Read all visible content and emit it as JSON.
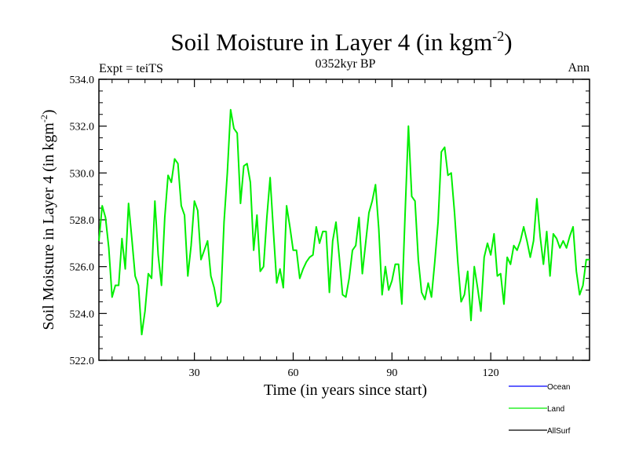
{
  "chart_data": {
    "type": "line",
    "title_main": "Soil Moisture in Layer 4 (in kgm",
    "title_sup": "-2",
    "title_close": ")",
    "subtitle": "0352kyr BP",
    "left_label": "Expt = teiTS",
    "right_label": "Ann",
    "xlabel": "Time (in years since start)",
    "ylabel_main": "Soil Moisture in Layer 4 (in kgm",
    "ylabel_sup": "-2",
    "ylabel_close": ")",
    "xlim": [
      1,
      150
    ],
    "ylim": [
      522,
      534
    ],
    "xticks": [
      30,
      60,
      90,
      120
    ],
    "xtick_labels": [
      "30",
      "60",
      "90",
      "120"
    ],
    "yticks": [
      522,
      524,
      526,
      528,
      530,
      532,
      534
    ],
    "ytick_labels": [
      "522.0",
      "524.0",
      "526.0",
      "528.0",
      "530.0",
      "532.0",
      "534.0"
    ],
    "x_minor_step": 5,
    "y_minor_step": 0.5,
    "legend": [
      {
        "name": "Ocean",
        "color": "#0000ff"
      },
      {
        "name": "Land",
        "color": "#00ee00"
      },
      {
        "name": "AllSurf",
        "color": "#000000"
      }
    ],
    "series": [
      {
        "name": "Land",
        "color": "#00ee00",
        "x_start": 1,
        "x_step": 1,
        "values": [
          527.1,
          528.6,
          528.1,
          526.8,
          524.7,
          525.2,
          525.2,
          527.2,
          525.9,
          528.7,
          527.2,
          525.6,
          525.2,
          523.1,
          524.1,
          525.7,
          525.5,
          528.8,
          526.5,
          525.2,
          528.1,
          529.9,
          529.6,
          530.6,
          530.4,
          528.6,
          528.2,
          525.6,
          526.9,
          528.8,
          528.4,
          526.3,
          526.7,
          527.1,
          525.6,
          525.1,
          524.3,
          524.5,
          527.9,
          530.0,
          532.7,
          531.9,
          531.7,
          528.7,
          530.3,
          530.4,
          529.6,
          526.7,
          528.2,
          525.8,
          526.0,
          528.1,
          529.8,
          527.5,
          525.3,
          525.9,
          525.1,
          528.6,
          527.7,
          526.7,
          526.7,
          525.5,
          525.9,
          526.2,
          526.4,
          526.5,
          527.7,
          527.0,
          527.5,
          527.5,
          524.9,
          527.1,
          527.9,
          526.4,
          524.8,
          524.7,
          525.5,
          526.7,
          526.9,
          528.1,
          525.7,
          527.0,
          528.3,
          528.8,
          529.5,
          527.6,
          524.8,
          526.0,
          525.0,
          525.4,
          526.1,
          526.1,
          524.4,
          528.3,
          532.0,
          529.0,
          528.8,
          526.3,
          524.9,
          524.6,
          525.3,
          524.7,
          526.2,
          527.9,
          530.9,
          531.1,
          529.9,
          530.0,
          528.3,
          526.2,
          524.5,
          524.8,
          525.8,
          523.7,
          526.0,
          525.1,
          524.1,
          526.4,
          527.0,
          526.5,
          527.4,
          525.6,
          525.7,
          524.4,
          526.4,
          526.1,
          526.9,
          526.7,
          527.1,
          527.7,
          527.1,
          526.4,
          527.1,
          528.9,
          527.3,
          526.1,
          527.5,
          525.6,
          527.4,
          527.2,
          526.8,
          527.1,
          526.8,
          527.3,
          527.7,
          525.8,
          524.8,
          525.2,
          526.3,
          526.3
        ]
      }
    ]
  }
}
